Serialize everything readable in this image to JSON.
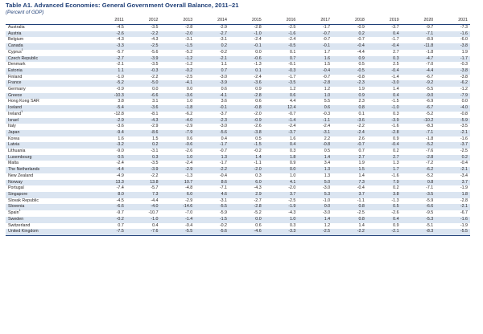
{
  "title": "Table A1. Advanced Economies: General Government Overall Balance, 2011–21",
  "subtitle": "(Percent of GDP)",
  "years": [
    "2011",
    "2012",
    "2013",
    "2014",
    "2015",
    "2016",
    "2017",
    "2018",
    "2019",
    "2020",
    "2021"
  ],
  "rows": [
    {
      "country": "Australia",
      "note": "",
      "values": [
        "-4.5",
        "-3.5",
        "-2.8",
        "-2.9",
        "-2.8",
        "-2.5",
        "-1.7",
        "-0.9",
        "-3.7",
        "-9.7",
        "-7.3"
      ]
    },
    {
      "country": "Austria",
      "note": "",
      "values": [
        "-2.6",
        "-2.2",
        "-2.0",
        "-2.7",
        "-1.0",
        "-1.6",
        "-0.7",
        "0.2",
        "0.4",
        "-7.1",
        "-1.6"
      ]
    },
    {
      "country": "Belgium",
      "note": "",
      "values": [
        "-4.3",
        "-4.3",
        "-3.1",
        "-3.1",
        "-2.4",
        "-2.4",
        "-0.7",
        "-0.7",
        "-1.7",
        "-8.9",
        "-6.0"
      ]
    },
    {
      "country": "Canada",
      "note": "",
      "values": [
        "-3.3",
        "-2.5",
        "-1.5",
        "0.2",
        "-0.1",
        "-0.5",
        "-0.1",
        "-0.4",
        "-0.4",
        "-11.8",
        "-3.8"
      ]
    },
    {
      "country": "Cyprus",
      "note": "1",
      "values": [
        "-5.7",
        "-5.6",
        "-5.2",
        "-0.2",
        "0.0",
        "0.1",
        "1.7",
        "-4.4",
        "2.7",
        "-1.8",
        "1.9"
      ]
    },
    {
      "country": "Czech Republic",
      "note": "",
      "values": [
        "-2.7",
        "-3.9",
        "-1.2",
        "-2.1",
        "-0.6",
        "0.7",
        "1.6",
        "0.9",
        "0.3",
        "-4.7",
        "-1.7"
      ]
    },
    {
      "country": "Denmark",
      "note": "",
      "values": [
        "-2.1",
        "-3.5",
        "-1.2",
        "1.1",
        "-1.3",
        "-0.1",
        "1.5",
        "0.5",
        "2.5",
        "-7.0",
        "-0.3"
      ]
    },
    {
      "country": "Estonia",
      "note": "",
      "values": [
        "1.1",
        "-0.3",
        "-0.2",
        "0.7",
        "0.1",
        "-0.3",
        "-0.4",
        "-0.5",
        "-0.4",
        "-4.4",
        "-3.8"
      ]
    },
    {
      "country": "Finland",
      "note": "",
      "values": [
        "-1.0",
        "-2.2",
        "-2.5",
        "-3.0",
        "-2.4",
        "-1.7",
        "-0.7",
        "-0.8",
        "-1.4",
        "-6.7",
        "-3.8"
      ]
    },
    {
      "country": "France",
      "note": "",
      "values": [
        "-5.2",
        "-5.0",
        "-4.1",
        "-3.9",
        "-3.6",
        "-3.5",
        "-2.8",
        "-2.3",
        "-3.0",
        "-9.2",
        "-6.2"
      ]
    },
    {
      "country": "Germany",
      "note": "",
      "values": [
        "-0.9",
        "0.0",
        "0.0",
        "0.6",
        "0.9",
        "1.2",
        "1.2",
        "1.9",
        "1.4",
        "-5.5",
        "-1.2"
      ]
    },
    {
      "country": "Greece",
      "note": "",
      "values": [
        "-10.3",
        "-6.6",
        "-3.6",
        "-4.1",
        "-2.8",
        "0.6",
        "1.0",
        "0.9",
        "0.4",
        "-9.0",
        "-7.9"
      ]
    },
    {
      "country": "Hong Kong SAR",
      "note": "",
      "values": [
        "3.8",
        "3.1",
        "1.0",
        "3.6",
        "0.6",
        "4.4",
        "5.5",
        "2.3",
        "-1.5",
        "-6.9",
        "0.0"
      ]
    },
    {
      "country": "Iceland",
      "note": "",
      "values": [
        "-5.4",
        "-3.6",
        "-1.8",
        "-0.1",
        "-0.8",
        "12.4",
        "0.6",
        "0.8",
        "-1.0",
        "-6.7",
        "-4.0"
      ]
    },
    {
      "country": "Ireland",
      "note": "1",
      "values": [
        "-12.8",
        "-8.1",
        "-6.2",
        "-3.7",
        "-2.0",
        "-0.7",
        "-0.3",
        "0.1",
        "0.3",
        "-5.2",
        "-0.8"
      ]
    },
    {
      "country": "Israel",
      "note": "",
      "values": [
        "-2.9",
        "-4.3",
        "-4.0",
        "-2.3",
        "-0.9",
        "-1.4",
        "-1.1",
        "-3.6",
        "-3.9",
        "-10.2",
        "-5.9"
      ]
    },
    {
      "country": "Italy",
      "note": "",
      "values": [
        "-3.6",
        "-2.9",
        "-2.9",
        "-3.0",
        "-2.6",
        "-2.4",
        "-2.4",
        "-2.2",
        "-1.6",
        "-8.3",
        "-3.5"
      ]
    },
    {
      "country": "Japan",
      "note": "",
      "values": [
        "-9.4",
        "-8.6",
        "-7.9",
        "-5.6",
        "-3.8",
        "-3.7",
        "-3.1",
        "-2.4",
        "-2.8",
        "-7.1",
        "-2.1"
      ]
    },
    {
      "country": "Korea",
      "note": "",
      "values": [
        "1.6",
        "1.5",
        "0.6",
        "0.4",
        "0.5",
        "1.6",
        "2.2",
        "2.6",
        "0.9",
        "-1.8",
        "-1.6"
      ]
    },
    {
      "country": "Latvia",
      "note": "",
      "values": [
        "-3.2",
        "0.2",
        "-0.6",
        "-1.7",
        "-1.5",
        "0.4",
        "-0.8",
        "-0.7",
        "-0.4",
        "-5.2",
        "-3.7"
      ]
    },
    {
      "country": "Lithuania",
      "note": "",
      "values": [
        "-9.0",
        "-3.1",
        "-2.6",
        "-0.7",
        "-0.2",
        "0.3",
        "0.5",
        "0.7",
        "0.2",
        "-7.6",
        "-2.5"
      ]
    },
    {
      "country": "Luxembourg",
      "note": "",
      "values": [
        "0.5",
        "0.3",
        "1.0",
        "1.3",
        "1.4",
        "1.8",
        "1.4",
        "2.7",
        "2.7",
        "-2.8",
        "0.2"
      ]
    },
    {
      "country": "Malta",
      "note": "",
      "values": [
        "-2.4",
        "-3.5",
        "-2.4",
        "-1.7",
        "-1.1",
        "0.9",
        "3.4",
        "1.9",
        "1.3",
        "-7.2",
        "-0.4"
      ]
    },
    {
      "country": "The Netherlands",
      "note": "",
      "values": [
        "-4.4",
        "-3.9",
        "-2.9",
        "-2.2",
        "-2.0",
        "0.0",
        "1.3",
        "1.5",
        "1.7",
        "-6.2",
        "-2.1"
      ]
    },
    {
      "country": "New Zealand",
      "note": "",
      "values": [
        "-4.9",
        "-2.2",
        "-1.3",
        "-0.4",
        "0.3",
        "1.0",
        "1.3",
        "1.4",
        "-1.6",
        "-5.2",
        "-3.4"
      ]
    },
    {
      "country": "Norway",
      "note": "",
      "values": [
        "13.3",
        "13.8",
        "10.7",
        "8.6",
        "6.0",
        "4.1",
        "5.0",
        "7.3",
        "7.9",
        "0.8",
        "3.7"
      ]
    },
    {
      "country": "Portugal",
      "note": "",
      "values": [
        "-7.4",
        "-5.7",
        "-4.8",
        "-7.1",
        "-4.3",
        "-2.0",
        "-3.0",
        "-0.4",
        "0.2",
        "-7.1",
        "-1.9"
      ]
    },
    {
      "country": "Singapore",
      "note": "",
      "values": [
        "8.0",
        "7.3",
        "6.0",
        "4.6",
        "2.9",
        "3.7",
        "5.3",
        "3.7",
        "3.8",
        "-3.5",
        "1.8"
      ]
    },
    {
      "country": "Slovak Republic",
      "note": "",
      "values": [
        "-4.5",
        "-4.4",
        "-2.9",
        "-3.1",
        "-2.7",
        "-2.5",
        "-1.0",
        "-1.1",
        "-1.3",
        "-5.9",
        "-2.8"
      ]
    },
    {
      "country": "Slovenia",
      "note": "",
      "values": [
        "-6.6",
        "-4.0",
        "-14.6",
        "-5.5",
        "-2.8",
        "-1.9",
        "0.0",
        "0.8",
        "0.5",
        "-6.6",
        "-2.1"
      ]
    },
    {
      "country": "Spain",
      "note": "1",
      "values": [
        "-9.7",
        "-10.7",
        "-7.0",
        "-5.9",
        "-5.2",
        "-4.3",
        "-3.0",
        "-2.5",
        "-2.6",
        "-9.5",
        "-6.7"
      ]
    },
    {
      "country": "Sweden",
      "note": "",
      "values": [
        "-0.2",
        "-1.0",
        "-1.4",
        "-1.5",
        "0.0",
        "1.0",
        "1.4",
        "0.8",
        "0.4",
        "-5.3",
        "-1.6"
      ]
    },
    {
      "country": "Switzerland",
      "note": "",
      "values": [
        "0.7",
        "0.4",
        "-0.4",
        "-0.2",
        "0.6",
        "0.3",
        "1.2",
        "1.4",
        "0.9",
        "-5.1",
        "-1.9"
      ]
    },
    {
      "country": "United Kingdom",
      "note": "",
      "values": [
        "-7.5",
        "-7.6",
        "-5.5",
        "-5.6",
        "-4.6",
        "-3.3",
        "-2.5",
        "-2.2",
        "-2.1",
        "-8.3",
        "-5.5"
      ]
    }
  ]
}
